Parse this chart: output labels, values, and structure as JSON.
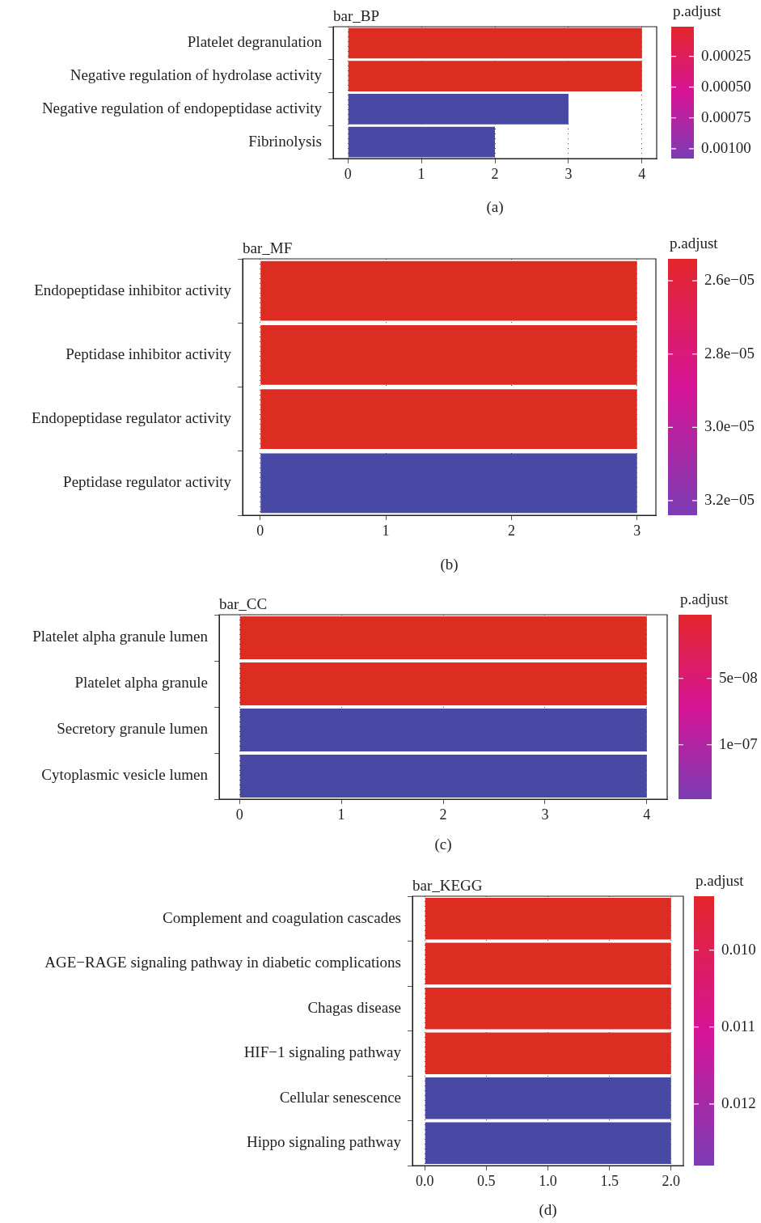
{
  "chart_data": [
    {
      "type": "bar",
      "orientation": "horizontal",
      "title": "bar_BP",
      "clabel": "p.adjust",
      "annotations": [
        "(a)"
      ],
      "grid": "x",
      "legend": false,
      "categories": [
        "Platelet degranulation",
        "Negative regulation of hydrolase activity",
        "Negative regulation of endopeptidase activity",
        "Fibrinolysis"
      ],
      "values": [
        4,
        4,
        3,
        2
      ],
      "colors": [
        "#dd2c22",
        "#dd2c22",
        "#4749a5",
        "#4749a5"
      ],
      "xlim": [
        -0.2,
        4.2
      ],
      "xticks": [
        0,
        1,
        2,
        3,
        4
      ],
      "clim": [
        1e-05,
        0.00108
      ],
      "cticks": [
        0.00025,
        {
          "value": 0.0005,
          "label": "0.00050"
        },
        0.00075,
        {
          "value": 0.001,
          "label": "0.00100"
        }
      ]
    },
    {
      "type": "bar",
      "orientation": "horizontal",
      "title": "bar_MF",
      "clabel": "p.adjust",
      "annotations": [
        "(b)"
      ],
      "grid": "x",
      "legend": false,
      "categories": [
        "Endopeptidase inhibitor activity",
        "Peptidase inhibitor activity",
        "Endopeptidase regulator activity",
        "Peptidase regulator activity"
      ],
      "values": [
        3,
        3,
        3,
        3
      ],
      "colors": [
        "#dd2c22",
        "#dd2c22",
        "#dd2c22",
        "#4749a5"
      ],
      "xlim": [
        -0.14,
        3.15
      ],
      "xticks": [
        0,
        1,
        2,
        3
      ],
      "clim": [
        2.54e-05,
        3.24e-05
      ],
      "cticks": [
        {
          "value": 2.6e-05,
          "label": "2.6e−05"
        },
        {
          "value": 2.8e-05,
          "label": "2.8e−05"
        },
        {
          "value": 3e-05,
          "label": "3.0e−05"
        },
        {
          "value": 3.2e-05,
          "label": "3.2e−05"
        }
      ]
    },
    {
      "type": "bar",
      "orientation": "horizontal",
      "title": "bar_CC",
      "clabel": "p.adjust",
      "annotations": [
        "(c)"
      ],
      "grid": "x",
      "legend": false,
      "categories": [
        "Platelet alpha granule lumen",
        "Platelet alpha granule",
        "Secretory granule lumen",
        "Cytoplasmic vesicle lumen"
      ],
      "values": [
        4,
        4,
        4,
        4
      ],
      "colors": [
        "#dd2c22",
        "#dd2c22",
        "#4749a5",
        "#4749a5"
      ],
      "xlim": [
        -0.2,
        4.2
      ],
      "xticks": [
        0,
        1,
        2,
        3,
        4
      ],
      "clim": [
        2e-09,
        1.41e-07
      ],
      "cticks": [
        {
          "value": 5e-08,
          "label": "5e−08"
        },
        {
          "value": 1e-07,
          "label": "1e−07"
        }
      ]
    },
    {
      "type": "bar",
      "orientation": "horizontal",
      "title": "bar_KEGG",
      "clabel": "p.adjust",
      "annotations": [
        "(d)"
      ],
      "grid": "x",
      "legend": false,
      "categories": [
        "Complement and coagulation cascades",
        "AGE−RAGE signaling pathway in diabetic complications",
        "Chagas disease",
        "HIF−1 signaling pathway",
        "Cellular senescence",
        "Hippo signaling pathway"
      ],
      "values": [
        2,
        2,
        2,
        2,
        2,
        2
      ],
      "colors": [
        "#dd2c22",
        "#dd2c22",
        "#dd2c22",
        "#dd2c22",
        "#4749a5",
        "#4749a5"
      ],
      "xlim": [
        -0.1,
        2.1
      ],
      "xticks": [
        {
          "value": 0,
          "label": "0.0"
        },
        0.5,
        {
          "value": 1,
          "label": "1.0"
        },
        1.5,
        {
          "value": 2,
          "label": "2.0"
        }
      ],
      "clim": [
        0.0093,
        0.0128
      ],
      "cticks": [
        {
          "value": 0.01,
          "label": "0.010"
        },
        {
          "value": 0.011,
          "label": "0.011"
        },
        {
          "value": 0.012,
          "label": "0.012"
        }
      ]
    }
  ]
}
